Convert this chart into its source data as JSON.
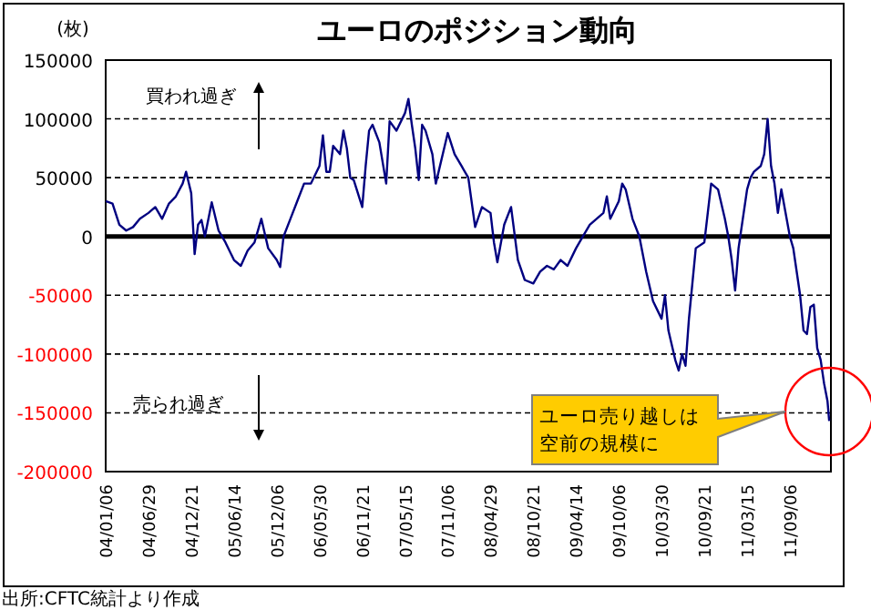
{
  "chart_data": {
    "type": "line",
    "title": "ユーロのポジション動向",
    "ylabel": "(枚)",
    "grid": "y",
    "marker": "none",
    "line_style": "solid",
    "xlim": [
      "2004-01-06",
      "2012-02-21"
    ],
    "ylim": [
      -200000,
      150000
    ],
    "yticks": [
      -200000,
      -150000,
      -100000,
      -50000,
      0,
      50000,
      100000,
      150000
    ],
    "xticks": [
      {
        "value": "2004-01-06",
        "label": "04/01/06"
      },
      {
        "value": "2004-06-29",
        "label": "04/06/29"
      },
      {
        "value": "2004-12-21",
        "label": "04/12/21"
      },
      {
        "value": "2005-06-14",
        "label": "05/06/14"
      },
      {
        "value": "2005-12-06",
        "label": "05/12/06"
      },
      {
        "value": "2006-05-30",
        "label": "06/05/30"
      },
      {
        "value": "2006-11-21",
        "label": "06/11/21"
      },
      {
        "value": "2007-05-15",
        "label": "07/05/15"
      },
      {
        "value": "2007-11-06",
        "label": "07/11/06"
      },
      {
        "value": "2008-04-29",
        "label": "08/04/29"
      },
      {
        "value": "2008-10-21",
        "label": "08/10/21"
      },
      {
        "value": "2009-04-14",
        "label": "09/04/14"
      },
      {
        "value": "2009-10-06",
        "label": "09/10/06"
      },
      {
        "value": "2010-03-30",
        "label": "10/03/30"
      },
      {
        "value": "2010-09-21",
        "label": "10/09/21"
      },
      {
        "value": "2011-03-15",
        "label": "11/03/15"
      },
      {
        "value": "2011-09-06",
        "label": "11/09/06"
      }
    ],
    "ref_lines": [
      {
        "axis": "y",
        "value": 0,
        "color": "#000000"
      }
    ],
    "x": [
      "2004-01-06",
      "2004-02-03",
      "2004-03-02",
      "2004-03-30",
      "2004-04-27",
      "2004-05-25",
      "2004-06-29",
      "2004-07-27",
      "2004-08-24",
      "2004-09-21",
      "2004-10-19",
      "2004-11-16",
      "2004-11-30",
      "2004-12-21",
      "2005-01-04",
      "2005-01-18",
      "2005-02-01",
      "2005-02-15",
      "2005-03-15",
      "2005-04-12",
      "2005-05-10",
      "2005-06-14",
      "2005-07-12",
      "2005-08-09",
      "2005-09-06",
      "2005-10-04",
      "2005-11-01",
      "2005-12-06",
      "2005-12-20",
      "2006-01-03",
      "2006-01-31",
      "2006-02-28",
      "2006-03-28",
      "2006-04-25",
      "2006-05-30",
      "2006-06-13",
      "2006-06-27",
      "2006-07-11",
      "2006-07-25",
      "2006-08-22",
      "2006-09-05",
      "2006-09-19",
      "2006-10-03",
      "2006-10-17",
      "2006-11-21",
      "2006-12-05",
      "2006-12-19",
      "2007-01-02",
      "2007-01-30",
      "2007-02-27",
      "2007-03-13",
      "2007-04-10",
      "2007-05-15",
      "2007-05-29",
      "2007-06-12",
      "2007-06-26",
      "2007-07-10",
      "2007-07-24",
      "2007-08-07",
      "2007-09-04",
      "2007-09-18",
      "2007-11-06",
      "2007-12-04",
      "2008-01-01",
      "2008-01-29",
      "2008-02-26",
      "2008-03-25",
      "2008-04-29",
      "2008-05-13",
      "2008-05-27",
      "2008-06-24",
      "2008-07-22",
      "2008-08-19",
      "2008-09-16",
      "2008-10-21",
      "2008-11-18",
      "2008-12-16",
      "2009-01-13",
      "2009-02-10",
      "2009-03-10",
      "2009-04-14",
      "2009-05-12",
      "2009-06-09",
      "2009-07-07",
      "2009-08-04",
      "2009-08-18",
      "2009-09-01",
      "2009-10-06",
      "2009-10-20",
      "2009-11-03",
      "2009-12-01",
      "2009-12-29",
      "2010-01-26",
      "2010-02-23",
      "2010-03-30",
      "2010-04-13",
      "2010-04-27",
      "2010-05-25",
      "2010-06-08",
      "2010-06-22",
      "2010-07-06",
      "2010-07-20",
      "2010-08-03",
      "2010-08-17",
      "2010-09-21",
      "2010-10-05",
      "2010-10-19",
      "2010-11-16",
      "2010-12-14",
      "2010-12-28",
      "2011-01-11",
      "2011-01-25",
      "2011-02-08",
      "2011-03-15",
      "2011-03-29",
      "2011-04-12",
      "2011-05-10",
      "2011-05-24",
      "2011-06-07",
      "2011-06-21",
      "2011-07-05",
      "2011-07-19",
      "2011-08-02",
      "2011-09-06",
      "2011-09-20",
      "2011-10-04",
      "2011-10-18",
      "2011-11-01",
      "2011-11-15",
      "2011-11-29",
      "2011-12-13",
      "2011-12-27",
      "2012-01-10",
      "2012-01-24",
      "2012-02-07",
      "2012-02-14"
    ],
    "series": [
      {
        "color": "#000080",
        "values": [
          30000,
          28000,
          10000,
          5000,
          8000,
          15000,
          20000,
          25000,
          15000,
          28000,
          34000,
          45000,
          55000,
          37000,
          -15000,
          10000,
          14000,
          0,
          29000,
          5000,
          -5000,
          -20000,
          -25000,
          -12000,
          -5000,
          15000,
          -10000,
          -20000,
          -26000,
          0,
          15000,
          30000,
          45000,
          45000,
          60000,
          86000,
          55000,
          55000,
          77000,
          70000,
          90000,
          75000,
          50000,
          48000,
          25000,
          60000,
          90000,
          95000,
          80000,
          45000,
          98000,
          90000,
          105000,
          117000,
          95000,
          75000,
          48000,
          95000,
          90000,
          70000,
          45000,
          88000,
          70000,
          60000,
          50000,
          8000,
          25000,
          20000,
          -5000,
          -22000,
          10000,
          25000,
          -20000,
          -37000,
          -40000,
          -30000,
          -25000,
          -28000,
          -20000,
          -25000,
          -10000,
          0,
          10000,
          15000,
          20000,
          34000,
          15000,
          30000,
          45000,
          40000,
          15000,
          0,
          -30000,
          -55000,
          -70000,
          -50000,
          -80000,
          -105000,
          -114000,
          -100000,
          -110000,
          -70000,
          -40000,
          -10000,
          -5000,
          20000,
          45000,
          40000,
          15000,
          0,
          -20000,
          -46000,
          -10000,
          40000,
          50000,
          55000,
          60000,
          70000,
          100000,
          60000,
          45000,
          20000,
          40000,
          0,
          -10000,
          -30000,
          -50000,
          -80000,
          -83000,
          -60000,
          -58000,
          -95000,
          -105000,
          -125000,
          -140000,
          -157000
        ]
      }
    ],
    "annotations": [
      "買われ過ぎ",
      "売られ過ぎ",
      "ユーロ売り越しは空前の規模に",
      "出所:CFTC統計より作成"
    ]
  }
}
